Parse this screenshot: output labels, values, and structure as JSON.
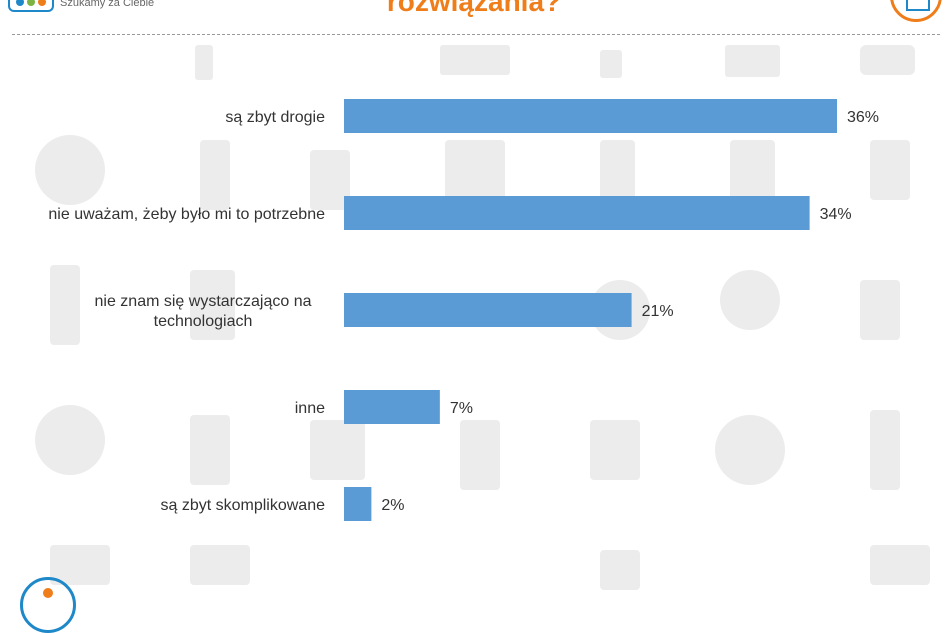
{
  "header": {
    "tagline": "Szukamy za Ciebie",
    "title": "rozwiązania?"
  },
  "colors": {
    "bar": "#5b9bd5",
    "title": "#ef7d1a",
    "brand": "#1e88c8"
  },
  "chart_data": {
    "type": "bar",
    "orientation": "horizontal",
    "categories": [
      [
        "są zbyt drogie"
      ],
      [
        "nie uważam, żeby było mi to potrzebne"
      ],
      [
        "nie znam się wystarczająco na",
        "technologiach"
      ],
      [
        "inne"
      ],
      [
        "są zbyt skomplikowane"
      ]
    ],
    "values": [
      36,
      34,
      21,
      7,
      2
    ],
    "value_labels": [
      "36%",
      "34%",
      "21%",
      "7%",
      "2%"
    ],
    "unit": "%",
    "xlim": [
      0,
      36
    ],
    "grid": false,
    "legend": "none"
  }
}
